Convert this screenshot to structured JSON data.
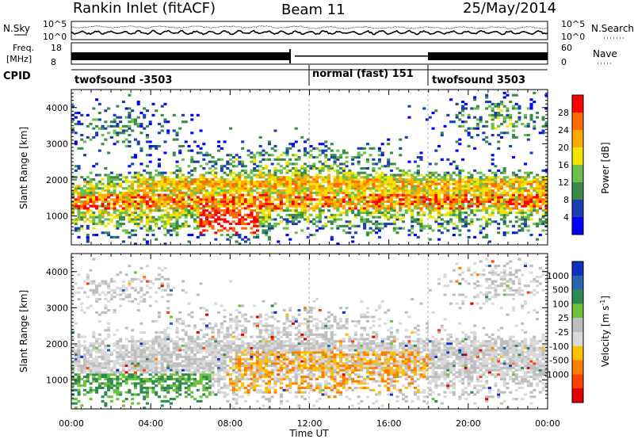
{
  "header": {
    "radar": "Rankin Inlet (fitACF)",
    "beam": "Beam 11",
    "date": "25/May/2014"
  },
  "noise_panel": {
    "left_label": "N.Sky",
    "right_label": "N.Search",
    "left_ticks": [
      "10^5",
      "10^0"
    ],
    "right_ticks": [
      "10^5",
      "10^0"
    ]
  },
  "freq_panel": {
    "left_label_line1": "Freq.",
    "left_label_line2": "[MHz]",
    "left_ticks": [
      "18",
      "8"
    ],
    "right_label": "Nave",
    "right_ticks": [
      "60",
      "0"
    ]
  },
  "cpid_panel": {
    "label": "CPID",
    "segments": [
      {
        "name": "twofsound -3503",
        "start_hour": 0,
        "end_hour": 12
      },
      {
        "name": "normal (fast) 151",
        "start_hour": 12,
        "end_hour": 18
      },
      {
        "name": "twofsound 3503",
        "start_hour": 18,
        "end_hour": 24
      }
    ]
  },
  "colors": {
    "power_scale": [
      "#0000ff",
      "#1a3fb0",
      "#3a8a4a",
      "#6cc04a",
      "#f2e500",
      "#ffaa00",
      "#ff6a00",
      "#ff0000"
    ],
    "velocity_scale": [
      "#1030c0",
      "#2a64b0",
      "#2e8a50",
      "#70c040",
      "#bebebe",
      "#d9d9d9",
      "#ffc000",
      "#ff8000",
      "#ff4000",
      "#e00000"
    ]
  },
  "chart_data": [
    {
      "type": "heatmap",
      "name": "Power",
      "ylabel": "Slant Range [km]",
      "xlabel": "",
      "ylim": [
        200,
        4500
      ],
      "xlim": [
        0,
        24
      ],
      "x_ticks": [
        "00:00",
        "04:00",
        "08:00",
        "12:00",
        "16:00",
        "20:00",
        "00:00"
      ],
      "y_ticks": [
        1000,
        2000,
        3000,
        4000
      ],
      "colorbar": {
        "label": "Power [dB]",
        "ticks": [
          4,
          8,
          12,
          16,
          20,
          24,
          28
        ],
        "range": [
          0,
          32
        ]
      }
    },
    {
      "type": "heatmap",
      "name": "Velocity",
      "ylabel": "Slant Range [km]",
      "xlabel": "Time UT",
      "ylim": [
        200,
        4500
      ],
      "xlim": [
        0,
        24
      ],
      "x_ticks": [
        "00:00",
        "04:00",
        "08:00",
        "12:00",
        "16:00",
        "20:00",
        "00:00"
      ],
      "y_ticks": [
        1000,
        2000,
        3000,
        4000
      ],
      "colorbar": {
        "label": "Velocity [m s",
        "label_sup": "-1",
        "label_end": "]",
        "ticks": [
          "1000",
          "500",
          "100",
          "25",
          "-25",
          "-100",
          "-500",
          "-1000"
        ]
      }
    }
  ]
}
